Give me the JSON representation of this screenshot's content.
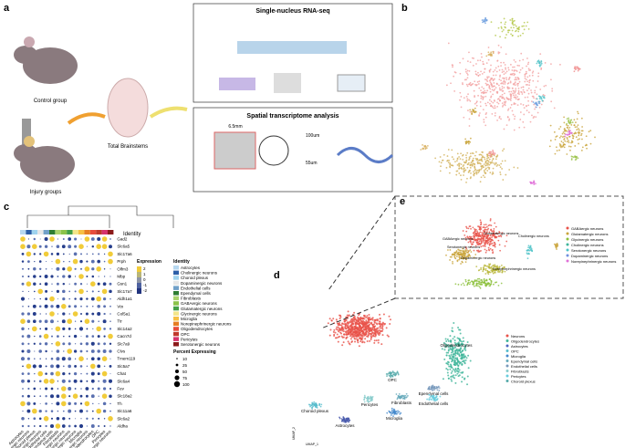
{
  "panel_a": {
    "label": "a",
    "control": "Control group",
    "injury": "Injury groups",
    "total": "Total Brainstems",
    "snrna_title": "Single-nucleus RNA-seq",
    "spatial_title": "Spatial transcriptome analysis",
    "size_label": "6.5mm",
    "spot_label": "100um",
    "spot_size": "55um"
  },
  "panel_b": {
    "label": "b"
  },
  "panel_c": {
    "label": "c",
    "identity_title": "Identity",
    "expression_title": "Expression",
    "expression_ticks": [
      "2",
      "1",
      "0",
      "-1",
      "-2"
    ],
    "percent_title": "Percent Expressing",
    "percent_ticks": [
      "10",
      "25",
      "50",
      "75",
      "100"
    ],
    "genes": [
      "Gad2",
      "Slc6a5",
      "Slc17a6",
      "Prph",
      "Olfm3",
      "Mbp",
      "Gsn1",
      "Slc17a7",
      "Aldh1a1",
      "Vtn",
      "Col5a1",
      "Ttr",
      "Slc14a2",
      "Cacn7d",
      "Slc7a9",
      "Clvs",
      "Tmem119",
      "Slc5a7",
      "Chat",
      "Slc6a4",
      "Fev",
      "Slc18a2",
      "Th",
      "Slc11a6",
      "Slc6a2",
      "Aldha"
    ],
    "identities": [
      "Astrocytes",
      "Cholinergic neurons",
      "Choroid plexus",
      "Dopaminergic neurons",
      "Endothelial cells",
      "Ependymal cells",
      "Fibroblasts",
      "GABAergic neurons",
      "Glutamatergic neurons",
      "Glycinergic neurons",
      "Microglia",
      "Norepinephrinergic neurons",
      "Oligodendrocytes",
      "OPC",
      "Pericytes",
      "Serotonergic neurons"
    ]
  },
  "panel_d": {
    "label": "d",
    "clusters": [
      "Oligodendrocytes",
      "OPC",
      "Choroid plexus",
      "Pericytes",
      "Fibroblasts",
      "Ependymal cells",
      "Endothelial cells",
      "Astrocytes",
      "Microglia"
    ],
    "legend": [
      "Neurons",
      "Oligodendrocytes",
      "Astrocytes",
      "OPC",
      "Microglia",
      "Ependymal cells",
      "Endothelial cells",
      "Fibroblasts",
      "Pericytes",
      "Choroid plexus"
    ],
    "axis1": "UMAP_1",
    "axis2": "UMAP_2"
  },
  "panel_e": {
    "label": "e",
    "legend": [
      "GABAergic neurons",
      "Glutamatergic neurons",
      "Glycinergic neurons",
      "Cholinergic neurons",
      "Serotonergic neurons",
      "Dopaminergic neurons",
      "Norepinephrinergic neurons"
    ]
  }
}
